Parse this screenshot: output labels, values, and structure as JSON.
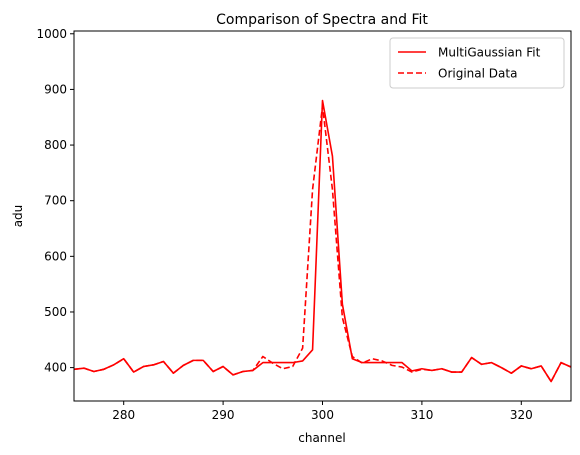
{
  "chart_data": {
    "type": "line",
    "title": "Comparison of Spectra and Fit",
    "xlabel": "channel",
    "ylabel": "adu",
    "xlim": [
      275,
      325
    ],
    "ylim": [
      340,
      1005
    ],
    "xticks": [
      280,
      290,
      300,
      310,
      320
    ],
    "yticks": [
      400,
      500,
      600,
      700,
      800,
      900,
      1000
    ],
    "grid": false,
    "legend_position": "top-right",
    "series": [
      {
        "name": "MultiGaussian Fit",
        "style": "solid",
        "color": "#ff0000",
        "x": [
          275,
          276,
          277,
          278,
          279,
          280,
          281,
          282,
          283,
          284,
          285,
          286,
          287,
          288,
          289,
          290,
          291,
          292,
          293,
          294,
          295,
          296,
          297,
          298,
          299,
          300,
          301,
          302,
          303,
          304,
          305,
          306,
          307,
          308,
          309,
          310,
          311,
          312,
          313,
          314,
          315,
          316,
          317,
          318,
          319,
          320,
          321,
          322,
          323,
          324,
          325
        ],
        "y": [
          397,
          399,
          393,
          397,
          405,
          416,
          392,
          402,
          405,
          411,
          390,
          404,
          413,
          413,
          393,
          402,
          387,
          393,
          395,
          409,
          409,
          409,
          409,
          412,
          432,
          880,
          780,
          514,
          416,
          409,
          409,
          409,
          409,
          409,
          394,
          398,
          395,
          398,
          392,
          392,
          418,
          406,
          409,
          400,
          390,
          403,
          398,
          403,
          375,
          409,
          401
        ]
      },
      {
        "name": "Original Data",
        "style": "dashed",
        "color": "#ff0000",
        "x": [
          275,
          276,
          277,
          278,
          279,
          280,
          281,
          282,
          283,
          284,
          285,
          286,
          287,
          288,
          289,
          290,
          291,
          292,
          293,
          294,
          295,
          296,
          297,
          298,
          299,
          300,
          301,
          302,
          303,
          304,
          305,
          306,
          307,
          308,
          309,
          310,
          311,
          312,
          313,
          314,
          315,
          316,
          317,
          318,
          319,
          320,
          321,
          322,
          323,
          324,
          325
        ],
        "y": [
          397,
          399,
          393,
          397,
          405,
          416,
          392,
          402,
          405,
          411,
          390,
          404,
          413,
          413,
          393,
          402,
          387,
          393,
          395,
          420,
          408,
          398,
          402,
          435,
          720,
          870,
          720,
          490,
          420,
          408,
          416,
          412,
          404,
          401,
          392,
          397,
          395,
          398,
          392,
          392,
          418,
          406,
          409,
          400,
          390,
          403,
          398,
          403,
          375,
          409,
          401
        ]
      }
    ]
  }
}
